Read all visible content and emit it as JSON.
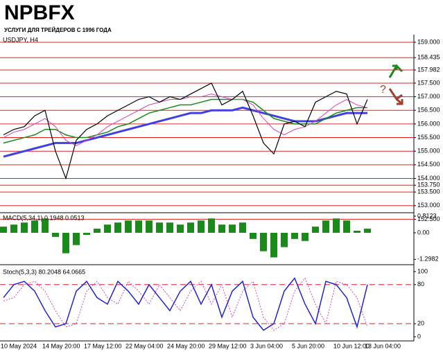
{
  "header": {
    "logo": "NPBFX",
    "tagline": "УСЛУГИ ДЛЯ ТРЕЙДЕРОВ С 1996 ГОДА",
    "annotation": "?"
  },
  "chart_data": [
    {
      "type": "line",
      "title": "USDJPY, H4",
      "ylim": [
        152.74,
        159.28
      ],
      "grid": true,
      "yticks": [
        {
          "value": 159,
          "label": "159.000"
        },
        {
          "value": 158.435,
          "label": "158.435"
        },
        {
          "value": 157.982,
          "label": "157.982"
        },
        {
          "value": 157.5,
          "label": "157.500"
        },
        {
          "value": 157,
          "label": "157.000"
        },
        {
          "value": 156.5,
          "label": "156.500"
        },
        {
          "value": 156,
          "label": "156.000"
        },
        {
          "value": 155.5,
          "label": "155.500"
        },
        {
          "value": 155,
          "label": "155.000"
        },
        {
          "value": 154.5,
          "label": "154.500"
        },
        {
          "value": 154,
          "label": "154.000"
        },
        {
          "value": 153.75,
          "label": "153.750"
        },
        {
          "value": 153.5,
          "label": "153.500"
        },
        {
          "value": 153,
          "label": "153.000"
        },
        {
          "value": 152.5,
          "label": "152.500"
        }
      ],
      "series": [
        {
          "color": "#4040e0",
          "width": 3,
          "values": [
            154.8,
            154.9,
            155.0,
            155.1,
            155.2,
            155.3,
            155.3,
            155.3,
            155.4,
            155.5,
            155.6,
            155.7,
            155.8,
            155.9,
            156.0,
            156.1,
            156.2,
            156.3,
            156.4,
            156.4,
            156.5,
            156.5,
            156.5,
            156.6,
            156.5,
            156.4,
            156.3,
            156.2,
            156.1,
            156.1,
            156.1,
            156.2,
            156.3,
            156.4,
            156.4,
            156.4
          ]
        },
        {
          "color": "#1a8a1a",
          "width": 1.5,
          "values": [
            155.3,
            155.4,
            155.5,
            155.6,
            155.8,
            155.8,
            155.6,
            155.5,
            155.5,
            155.6,
            155.7,
            155.9,
            156.0,
            156.2,
            156.4,
            156.5,
            156.6,
            156.7,
            156.7,
            156.8,
            156.9,
            156.9,
            156.9,
            156.9,
            156.8,
            156.5,
            156.2,
            156.1,
            156.0,
            156.0,
            156.0,
            156.2,
            156.4,
            156.5,
            156.6,
            156.6
          ]
        },
        {
          "color": "#e040c0",
          "width": 1,
          "values": [
            155.5,
            155.7,
            155.8,
            156.0,
            156.2,
            155.9,
            155.4,
            155.2,
            155.4,
            155.6,
            155.9,
            156.1,
            156.3,
            156.5,
            156.7,
            156.8,
            156.9,
            156.9,
            157.0,
            157.0,
            157.1,
            157.0,
            156.9,
            156.9,
            156.7,
            156.2,
            155.8,
            155.6,
            155.8,
            155.9,
            156.1,
            156.4,
            156.7,
            156.9,
            156.7,
            156.6
          ]
        },
        {
          "color": "#000000",
          "width": 1.2,
          "values": [
            155.6,
            155.8,
            155.9,
            156.3,
            156.5,
            155.0,
            154.0,
            155.4,
            155.8,
            156.0,
            156.3,
            156.5,
            156.7,
            156.9,
            157.0,
            156.8,
            157.0,
            156.9,
            157.1,
            157.3,
            157.5,
            156.7,
            156.9,
            157.2,
            156.3,
            155.3,
            154.9,
            156.0,
            156.1,
            155.9,
            156.8,
            157.0,
            157.2,
            157.1,
            156.0,
            156.9
          ]
        }
      ]
    },
    {
      "type": "bar",
      "title": "MACD(5,34,1) 0.1948 0.0513",
      "ylim": [
        -1.49,
        0.98
      ],
      "grid": false,
      "yticks": [
        {
          "value": 0.8123,
          "label": "0.8123"
        },
        {
          "value": 0,
          "label": "0.00"
        },
        {
          "value": -1.2982,
          "label": "-1.2982"
        }
      ],
      "series": [
        {
          "color": "#1a8a1a",
          "values": [
            0.3,
            0.4,
            0.5,
            0.6,
            0.7,
            -0.2,
            -1.0,
            -0.6,
            -0.1,
            0.2,
            0.4,
            0.5,
            0.6,
            0.6,
            0.6,
            0.5,
            0.5,
            0.4,
            0.5,
            0.6,
            0.7,
            0.4,
            0.4,
            0.5,
            -0.3,
            -0.9,
            -1.2,
            -0.7,
            -0.3,
            -0.4,
            0.3,
            0.6,
            0.7,
            0.6,
            0.1,
            0.2
          ]
        }
      ]
    },
    {
      "type": "line",
      "title": "Stoch(5,3,3) 80.2048 64.0665",
      "ylim": [
        -6.4,
        107.4
      ],
      "grid": false,
      "levels": [
        80,
        20
      ],
      "yticks": [
        100,
        80,
        20,
        0
      ],
      "categories": [
        "10 May 2024",
        null,
        null,
        null,
        "14 May 20:00",
        null,
        null,
        null,
        "17 May 12:00",
        null,
        null,
        null,
        "22 May 04:00",
        null,
        null,
        null,
        "24 May 20:00",
        null,
        null,
        null,
        "29 May 12:00",
        null,
        null,
        null,
        "3 Jun 04:00",
        null,
        null,
        null,
        "5 Jun 20:00",
        null,
        null,
        null,
        "10 Jun 12:00",
        null,
        null,
        "13 Jun 04:00"
      ],
      "series": [
        {
          "color": "#e040c0",
          "width": 1,
          "dashed": true,
          "values": [
            55,
            60,
            80,
            85,
            70,
            40,
            15,
            20,
            70,
            85,
            60,
            50,
            85,
            70,
            50,
            80,
            60,
            40,
            70,
            85,
            50,
            80,
            30,
            70,
            85,
            30,
            10,
            20,
            70,
            90,
            50,
            20,
            85,
            80,
            60,
            15
          ]
        },
        {
          "color": "#2020e0",
          "width": 1.5,
          "values": [
            60,
            80,
            85,
            70,
            40,
            15,
            20,
            70,
            85,
            60,
            50,
            85,
            70,
            50,
            80,
            60,
            40,
            70,
            85,
            50,
            80,
            30,
            70,
            85,
            30,
            10,
            20,
            70,
            90,
            50,
            20,
            85,
            80,
            60,
            15,
            80
          ]
        }
      ]
    }
  ]
}
